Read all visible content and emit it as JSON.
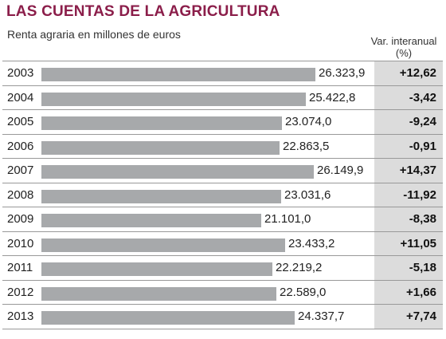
{
  "title": "LAS CUENTAS DE LA AGRICULTURA",
  "subtitle": "Renta agraria en millones de euros",
  "var_header": [
    "Var. interanual",
    "(%)"
  ],
  "colors": {
    "title": "#8b1e4a",
    "bar": "#a7a9ab",
    "pct_column": "#dcdcdc"
  },
  "chart_data": {
    "type": "bar",
    "orientation": "horizontal",
    "title": "LAS CUENTAS DE LA AGRICULTURA",
    "subtitle": "Renta agraria en millones de euros",
    "categories": [
      "2003",
      "2004",
      "2005",
      "2006",
      "2007",
      "2008",
      "2009",
      "2010",
      "2011",
      "2012",
      "2013"
    ],
    "values": [
      26323.9,
      25422.8,
      23074.0,
      22863.5,
      26149.9,
      23031.6,
      21101.0,
      23433.2,
      22219.2,
      22589.0,
      24337.7
    ],
    "value_labels": [
      "26.323,9",
      "25.422,8",
      "23.074,0",
      "22.863,5",
      "26.149,9",
      "23.031,6",
      "21.101,0",
      "23.433,2",
      "22.219,2",
      "22.589,0",
      "24.337,7"
    ],
    "var_interanual": [
      "+12,62",
      "-3,42",
      "-9,24",
      "-0,91",
      "+14,37",
      "-11,92",
      "-8,38",
      "+11,05",
      "-5,18",
      "+1,66",
      "+7,74"
    ],
    "grid": false,
    "legend": "none"
  }
}
